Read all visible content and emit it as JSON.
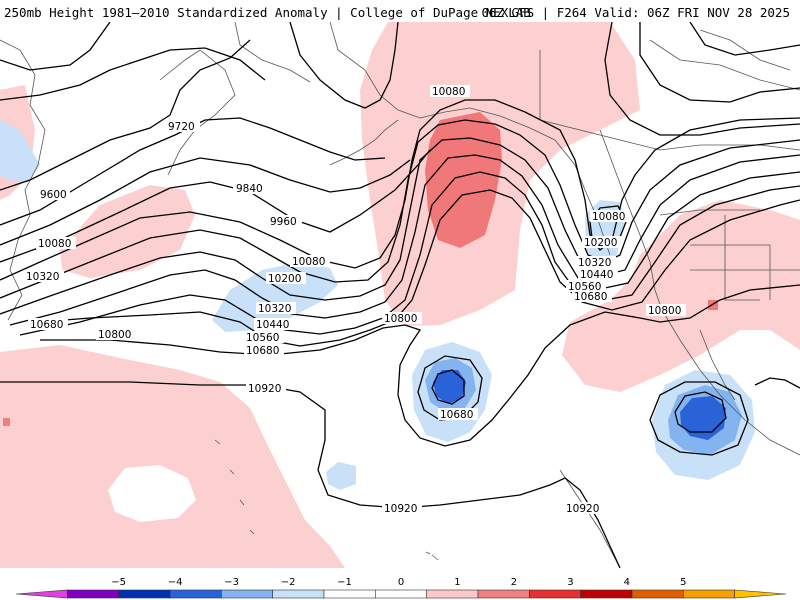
{
  "header": {
    "title_left": "250mb Height 1981–2010 Standardized Anomaly | College of DuPage NEXLAB",
    "title_right": "06Z GFS | F264 Valid: 06Z FRI NOV 28 2025"
  },
  "contour_labels": {
    "c9600": "9600",
    "c9720": "9720",
    "c9840": "9840",
    "c9960": "9960",
    "c10080_w": "10080",
    "c10080_mid": "10080",
    "c10080_n": "10080",
    "c10080_e": "10080",
    "c10200_w": "10200",
    "c10200_e": "10200",
    "c10320_w": "10320",
    "c10320_mid": "10320",
    "c10320_e": "10320",
    "c10440_mid": "10440",
    "c10440_e": "10440",
    "c10560_mid": "10560",
    "c10560_e": "10560",
    "c10680_w": "10680",
    "c10680_mid": "10680",
    "c10680_e": "10680",
    "c10680_low": "10680",
    "c10800_w": "10800",
    "c10800_mid": "10800",
    "c10800_e": "10800",
    "c10920_w": "10920",
    "c10920_s": "10920",
    "c10920_se": "10920"
  },
  "legend": {
    "ticks": [
      "−5",
      "−4",
      "−3",
      "−2",
      "−1",
      "0",
      "1",
      "2",
      "3",
      "4",
      "5"
    ],
    "colors": [
      "#e040e0",
      "#8000c0",
      "#0030b0",
      "#2a62d8",
      "#84b4f0",
      "#c8e0f8",
      "#ffffff",
      "#ffffff",
      "#fcc8c8",
      "#f08080",
      "#e83030",
      "#c00000",
      "#e06000",
      "#f8a000",
      "#ffc000"
    ]
  }
}
